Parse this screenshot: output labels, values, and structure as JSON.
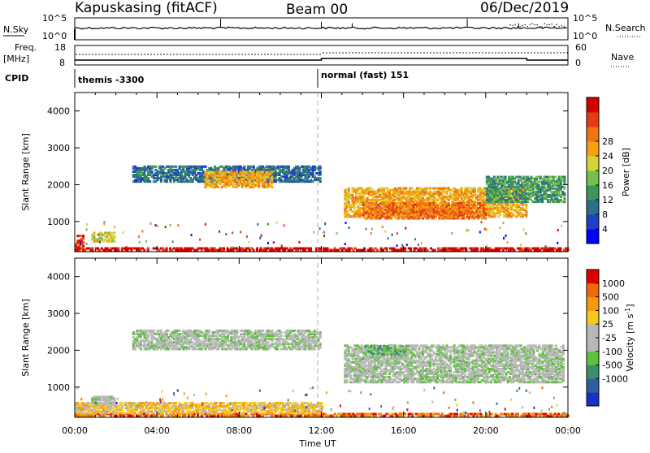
{
  "header": {
    "station": "Kapuskasing (fitACF)",
    "beam": "Beam 00",
    "date": "06/Dec/2019"
  },
  "strip": {
    "nsky_label": "N.Sky",
    "nsky_ticks": [
      "10^5",
      "10^0"
    ],
    "nsearch_label": "N.Search",
    "nsearch_ticks": [
      "10^5",
      "10^0"
    ],
    "freq_label": "Freq.",
    "freq_unit": "[MHz]",
    "freq_ticks": [
      "18",
      "8"
    ],
    "nave_label": "Nave",
    "nave_ticks": [
      "60",
      "0"
    ],
    "cpid_label": "CPID",
    "cpid_segments": [
      {
        "text": "themis -3300",
        "start_hour": 0
      },
      {
        "text": "normal (fast) 151",
        "start_hour": 12
      }
    ]
  },
  "panels": {
    "ylabel": "Slant Range [km]",
    "xlabel": "Time UT",
    "y_ticks": [
      "1000",
      "2000",
      "3000",
      "4000"
    ],
    "x_ticks": [
      "00:00",
      "04:00",
      "08:00",
      "12:00",
      "16:00",
      "20:00",
      "00:00"
    ]
  },
  "power_scale": {
    "label": "Power [dB]",
    "ticks": [
      "4",
      "8",
      "12",
      "16",
      "20",
      "24",
      "28"
    ],
    "colors": [
      "#0000ff",
      "#1e3fc8",
      "#2d6e8c",
      "#3c9657",
      "#74c04a",
      "#d6d23a",
      "#f5a20c",
      "#f07316",
      "#e33b16",
      "#d40000"
    ]
  },
  "velocity_scale": {
    "label": "Velocity [m s",
    "label_exp": "-1",
    "ticks": [
      "1000",
      "500",
      "100",
      "25",
      "-25",
      "-100",
      "-500",
      "-1000"
    ],
    "colors": [
      "#1a2fc8",
      "#2d5fa0",
      "#3c8c6e",
      "#5cc23c",
      "#b8b8b8",
      "#b8b8b8",
      "#f5c81e",
      "#f59a0c",
      "#f06a0a",
      "#e00000"
    ]
  },
  "chart_data": [
    {
      "type": "heatmap",
      "name": "power",
      "x_range_hours": [
        0,
        24
      ],
      "y_range_km": [
        180,
        4500
      ],
      "regions": [
        {
          "t0": 0.0,
          "t1": 24.0,
          "r0": 190,
          "r1": 260,
          "level": 9
        },
        {
          "t0": 0.0,
          "t1": 0.4,
          "r0": 260,
          "r1": 620,
          "level": 8
        },
        {
          "t0": 0.8,
          "t1": 1.9,
          "r0": 430,
          "r1": 700,
          "level": 5
        },
        {
          "t0": 2.8,
          "t1": 11.9,
          "r0": 2050,
          "r1": 2500,
          "level": 2
        },
        {
          "t0": 6.3,
          "t1": 9.6,
          "r0": 1900,
          "r1": 2350,
          "level": 6
        },
        {
          "t0": 13.1,
          "t1": 22.0,
          "r0": 1100,
          "r1": 1900,
          "level": 6
        },
        {
          "t0": 14.0,
          "t1": 20.0,
          "r0": 1050,
          "r1": 1500,
          "level": 7
        },
        {
          "t0": 20.0,
          "t1": 23.8,
          "r0": 1500,
          "r1": 2200,
          "level": 3
        }
      ]
    },
    {
      "type": "heatmap",
      "name": "velocity",
      "x_range_hours": [
        0,
        24
      ],
      "y_range_km": [
        180,
        4500
      ],
      "regions": [
        {
          "t0": 0.0,
          "t1": 24.0,
          "r0": 190,
          "r1": 260,
          "level": 8
        },
        {
          "t0": 0.0,
          "t1": 12.0,
          "r0": 260,
          "r1": 550,
          "level": 6
        },
        {
          "t0": 0.8,
          "t1": 1.9,
          "r0": 520,
          "r1": 720,
          "level": 4
        },
        {
          "t0": 2.8,
          "t1": 11.9,
          "r0": 2000,
          "r1": 2500,
          "level": 4
        },
        {
          "t0": 13.1,
          "t1": 23.8,
          "r0": 1100,
          "r1": 2100,
          "level": 4
        },
        {
          "t0": 14.1,
          "t1": 16.2,
          "r0": 1850,
          "r1": 2100,
          "level": 3
        }
      ]
    }
  ]
}
